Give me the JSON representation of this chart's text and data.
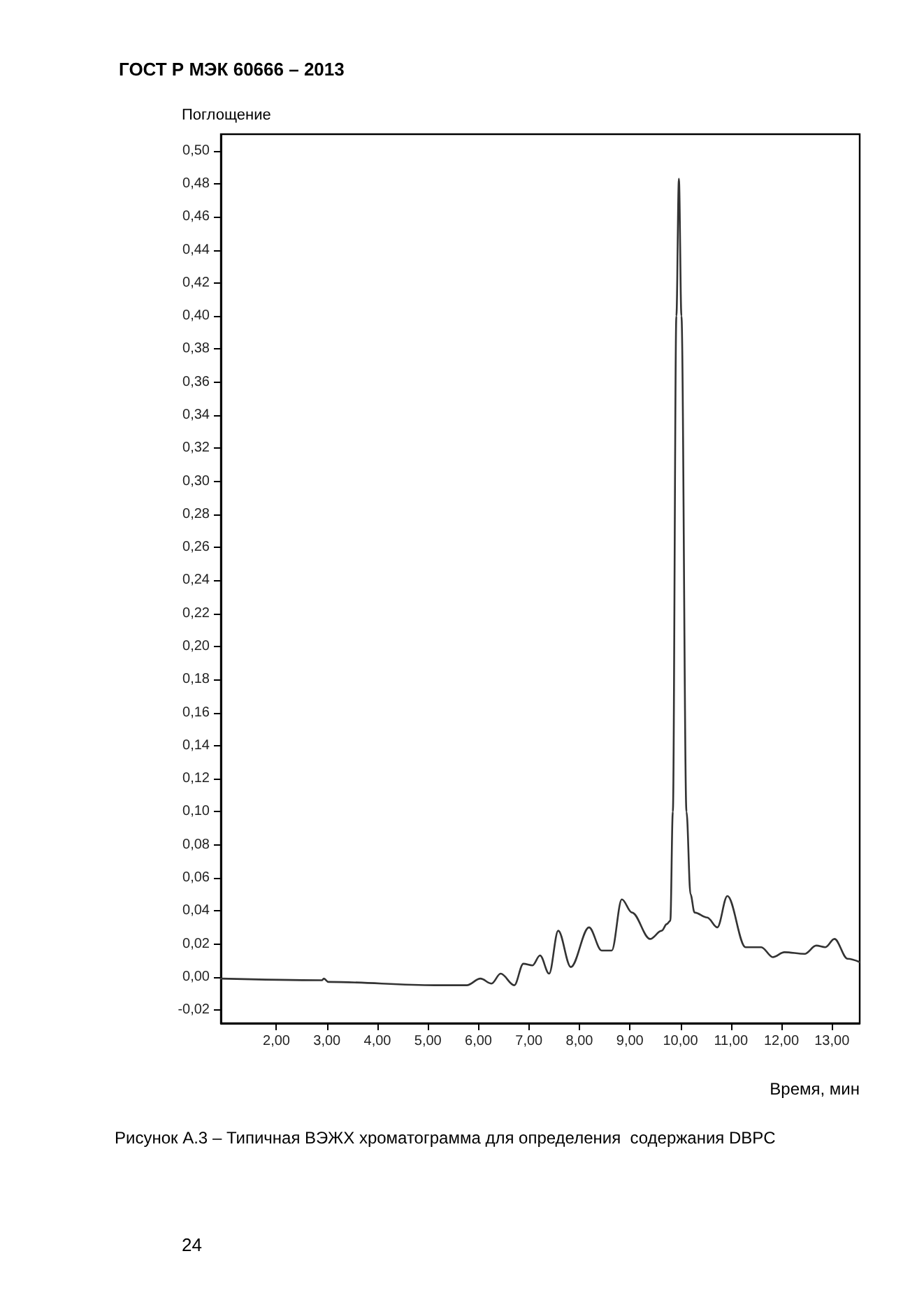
{
  "chart_data": {
    "type": "line",
    "title": "ГОСТ Р МЭК 60666 – 2013",
    "xlabel": "Время, мин",
    "ylabel": "Поглощение",
    "annotations": [
      "Рисунок А.3 – Типичная ВЭЖХ хроматограмма для определения  содержания DBPC",
      "24"
    ],
    "series": [
      {
        "color": "#333333",
        "x": [
          0.9,
          2.9,
          2.94,
          3.03,
          5.14,
          5.77,
          6.04,
          6.26,
          6.44,
          6.71,
          6.89,
          7.07,
          7.22,
          7.4,
          7.58,
          7.83,
          8.19,
          8.44,
          8.64,
          8.84,
          9.04,
          9.4,
          9.63,
          9.73,
          9.8,
          9.85,
          9.92,
          9.97,
          10.02,
          10.12,
          10.2,
          10.28,
          10.53,
          10.73,
          10.93,
          11.29,
          11.6,
          11.83,
          12.06,
          12.46,
          12.69,
          12.87,
          13.05,
          13.31,
          13.55
        ],
        "values": [
          -0.001,
          -0.002,
          -0.001,
          -0.003,
          -0.005,
          -0.005,
          -0.001,
          -0.004,
          0.002,
          -0.005,
          0.008,
          0.007,
          0.013,
          0.002,
          0.028,
          0.006,
          0.03,
          0.016,
          0.016,
          0.047,
          0.039,
          0.023,
          0.028,
          0.032,
          0.034,
          0.1,
          0.4,
          0.483,
          0.4,
          0.1,
          0.05,
          0.039,
          0.036,
          0.03,
          0.049,
          0.018,
          0.018,
          0.012,
          0.015,
          0.014,
          0.019,
          0.018,
          0.023,
          0.011,
          0.009
        ]
      }
    ],
    "xlim": [
      0.9,
      13.55
    ],
    "ylim": [
      -0.028,
      0.51
    ],
    "xticks": [
      {
        "value": 2,
        "label": "2,00"
      },
      {
        "value": 3,
        "label": "3,00"
      },
      {
        "value": 4,
        "label": "4,00"
      },
      {
        "value": 5,
        "label": "5,00"
      },
      {
        "value": 6,
        "label": "6,00"
      },
      {
        "value": 7,
        "label": "7,00"
      },
      {
        "value": 8,
        "label": "8,00"
      },
      {
        "value": 9,
        "label": "9,00"
      },
      {
        "value": 10,
        "label": "10,00"
      },
      {
        "value": 11,
        "label": "11,00"
      },
      {
        "value": 12,
        "label": "12,00"
      },
      {
        "value": 13,
        "label": "13,00"
      }
    ],
    "yticks": [
      {
        "value": -0.02,
        "label": "-0,02"
      },
      {
        "value": 0,
        "label": "0,00"
      },
      {
        "value": 0.02,
        "label": "0,02"
      },
      {
        "value": 0.04,
        "label": "0,04"
      },
      {
        "value": 0.06,
        "label": "0,06"
      },
      {
        "value": 0.08,
        "label": "0,08"
      },
      {
        "value": 0.1,
        "label": "0,10"
      },
      {
        "value": 0.12,
        "label": "0,12"
      },
      {
        "value": 0.14,
        "label": "0,14"
      },
      {
        "value": 0.16,
        "label": "0,16"
      },
      {
        "value": 0.18,
        "label": "0,18"
      },
      {
        "value": 0.2,
        "label": "0,20"
      },
      {
        "value": 0.22,
        "label": "0,22"
      },
      {
        "value": 0.24,
        "label": "0,24"
      },
      {
        "value": 0.26,
        "label": "0,26"
      },
      {
        "value": 0.28,
        "label": "0,28"
      },
      {
        "value": 0.3,
        "label": "0,30"
      },
      {
        "value": 0.32,
        "label": "0,32"
      },
      {
        "value": 0.34,
        "label": "0,34"
      },
      {
        "value": 0.36,
        "label": "0,36"
      },
      {
        "value": 0.38,
        "label": "0,38"
      },
      {
        "value": 0.4,
        "label": "0,40"
      },
      {
        "value": 0.42,
        "label": "0,42"
      },
      {
        "value": 0.44,
        "label": "0,44"
      },
      {
        "value": 0.46,
        "label": "0,46"
      },
      {
        "value": 0.48,
        "label": "0,48"
      },
      {
        "value": 0.5,
        "label": "0,50"
      }
    ],
    "grid": false,
    "marker": "none",
    "line_style": "solid"
  }
}
